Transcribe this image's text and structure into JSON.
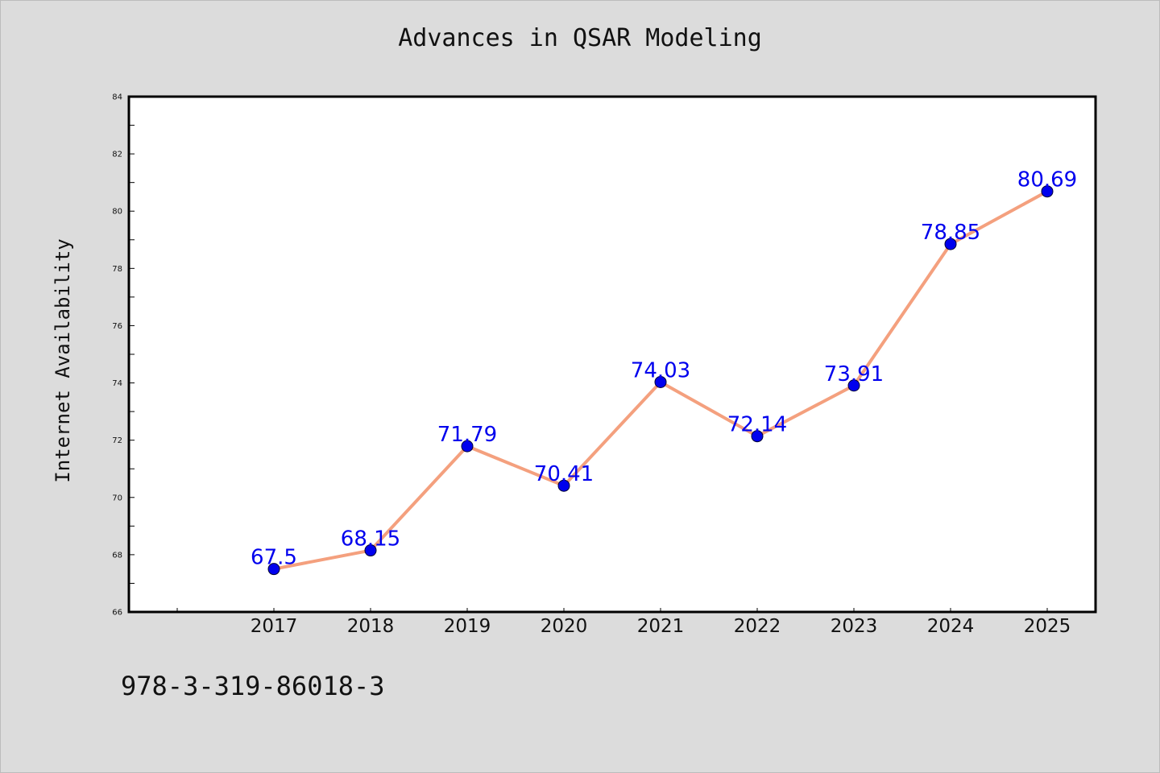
{
  "chart_data": {
    "type": "line",
    "title": "Advances in QSAR Modeling",
    "xlabel": "",
    "ylabel": "Internet Availability",
    "x": [
      "2017",
      "2018",
      "2019",
      "2020",
      "2021",
      "2022",
      "2023",
      "2024",
      "2025"
    ],
    "series": [
      {
        "values": [
          67.5,
          68.15,
          71.79,
          70.41,
          74.03,
          72.14,
          73.91,
          78.85,
          80.69
        ],
        "data_labels": [
          "67.5",
          "68.15",
          "71.79",
          "70.41",
          "74.03",
          "72.14",
          "73.91",
          "78.85",
          "80.69"
        ],
        "line_color": "#f4a07e",
        "marker_color": "#0000ee",
        "label_color": "#0000ee"
      }
    ],
    "xlim": [
      2015.5,
      2025.5
    ],
    "ylim": [
      66,
      84
    ],
    "yticks": [
      "66",
      "68",
      "70",
      "72",
      "74",
      "76",
      "78",
      "80",
      "82",
      "84"
    ],
    "grid": false,
    "legend": "none"
  },
  "footer": {
    "code": "978-3-319-86018-3"
  },
  "colors": {
    "background": "#dcdcdc",
    "plot_background": "#ffffff",
    "axis": "#000000"
  }
}
